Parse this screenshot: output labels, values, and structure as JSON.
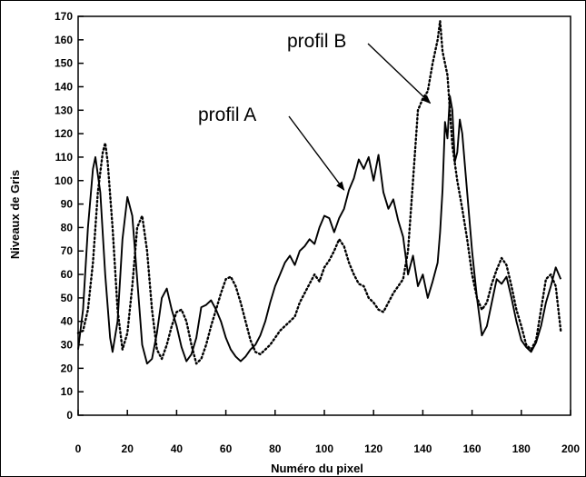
{
  "chart_data": {
    "type": "line",
    "title": "",
    "xlabel": "Numéro du pixel",
    "ylabel": "Niveaux de Gris",
    "xlim": [
      0,
      200
    ],
    "ylim": [
      0,
      170
    ],
    "xticks": [
      0,
      20,
      40,
      60,
      80,
      100,
      120,
      140,
      160,
      180,
      200
    ],
    "yticks": [
      0,
      10,
      20,
      30,
      40,
      50,
      60,
      70,
      80,
      90,
      100,
      110,
      120,
      130,
      140,
      150,
      160,
      170
    ],
    "grid": false,
    "legend": "none",
    "annotations": [
      {
        "text": "profil A",
        "points_to": [
          108,
          96
        ]
      },
      {
        "text": "profil B",
        "points_to": [
          143,
          133
        ]
      }
    ],
    "series": [
      {
        "name": "profil A",
        "style": "solid",
        "color": "#000000",
        "x": [
          0,
          2,
          4,
          6,
          7,
          9,
          11,
          13,
          14,
          16,
          18,
          20,
          22,
          24,
          26,
          28,
          30,
          32,
          34,
          36,
          38,
          40,
          42,
          44,
          46,
          48,
          50,
          52,
          54,
          56,
          58,
          60,
          62,
          64,
          66,
          68,
          70,
          72,
          74,
          76,
          78,
          80,
          82,
          84,
          86,
          88,
          90,
          92,
          94,
          96,
          98,
          100,
          102,
          104,
          106,
          108,
          110,
          112,
          114,
          116,
          118,
          120,
          122,
          124,
          126,
          128,
          130,
          132,
          134,
          136,
          138,
          140,
          142,
          144,
          146,
          147,
          148,
          149,
          150,
          151,
          152,
          153,
          154,
          155,
          156,
          158,
          160,
          162,
          164,
          166,
          168,
          170,
          172,
          174,
          176,
          178,
          180,
          182,
          184,
          186,
          188,
          190,
          192,
          194,
          196
        ],
        "y": [
          28,
          45,
          80,
          105,
          110,
          95,
          60,
          33,
          27,
          40,
          75,
          93,
          85,
          58,
          30,
          22,
          24,
          35,
          50,
          54,
          45,
          38,
          29,
          23,
          26,
          33,
          46,
          47,
          49,
          45,
          40,
          33,
          28,
          25,
          23,
          25,
          28,
          30,
          34,
          40,
          48,
          55,
          60,
          65,
          68,
          64,
          70,
          72,
          75,
          73,
          80,
          85,
          84,
          78,
          84,
          88,
          96,
          101,
          109,
          105,
          110,
          100,
          111,
          95,
          88,
          92,
          83,
          76,
          60,
          68,
          55,
          60,
          50,
          57,
          65,
          78,
          96,
          125,
          118,
          136,
          130,
          108,
          112,
          126,
          120,
          95,
          70,
          50,
          34,
          38,
          48,
          58,
          56,
          59,
          50,
          40,
          32,
          29,
          27,
          31,
          38,
          48,
          55,
          63,
          58
        ]
      },
      {
        "name": "profil B",
        "style": "dotted",
        "color": "#000000",
        "x": [
          0,
          2,
          4,
          6,
          8,
          10,
          11,
          12,
          14,
          16,
          18,
          20,
          22,
          24,
          26,
          28,
          30,
          32,
          34,
          36,
          38,
          40,
          42,
          44,
          46,
          48,
          50,
          52,
          54,
          56,
          58,
          60,
          62,
          64,
          66,
          68,
          70,
          72,
          74,
          76,
          78,
          80,
          82,
          84,
          86,
          88,
          90,
          92,
          94,
          96,
          98,
          100,
          102,
          104,
          106,
          108,
          110,
          112,
          114,
          116,
          118,
          120,
          122,
          124,
          126,
          128,
          130,
          132,
          134,
          136,
          138,
          140,
          142,
          144,
          146,
          147,
          148,
          149,
          150,
          151,
          152,
          154,
          156,
          158,
          160,
          162,
          164,
          166,
          168,
          170,
          172,
          174,
          176,
          178,
          180,
          182,
          184,
          186,
          188,
          190,
          192,
          194,
          196
        ],
        "y": [
          35,
          36,
          45,
          65,
          95,
          112,
          116,
          108,
          80,
          45,
          28,
          35,
          55,
          80,
          85,
          70,
          45,
          28,
          24,
          30,
          38,
          44,
          45,
          40,
          30,
          22,
          24,
          30,
          38,
          45,
          52,
          58,
          59,
          55,
          48,
          40,
          32,
          27,
          26,
          28,
          30,
          33,
          36,
          38,
          40,
          42,
          48,
          52,
          56,
          60,
          57,
          63,
          66,
          70,
          75,
          72,
          65,
          60,
          56,
          55,
          50,
          48,
          45,
          44,
          48,
          52,
          55,
          58,
          70,
          100,
          130,
          135,
          138,
          150,
          160,
          168,
          155,
          150,
          145,
          130,
          115,
          100,
          88,
          75,
          60,
          50,
          45,
          48,
          56,
          62,
          67,
          64,
          55,
          45,
          38,
          30,
          28,
          32,
          45,
          58,
          60,
          55,
          36
        ]
      }
    ]
  }
}
